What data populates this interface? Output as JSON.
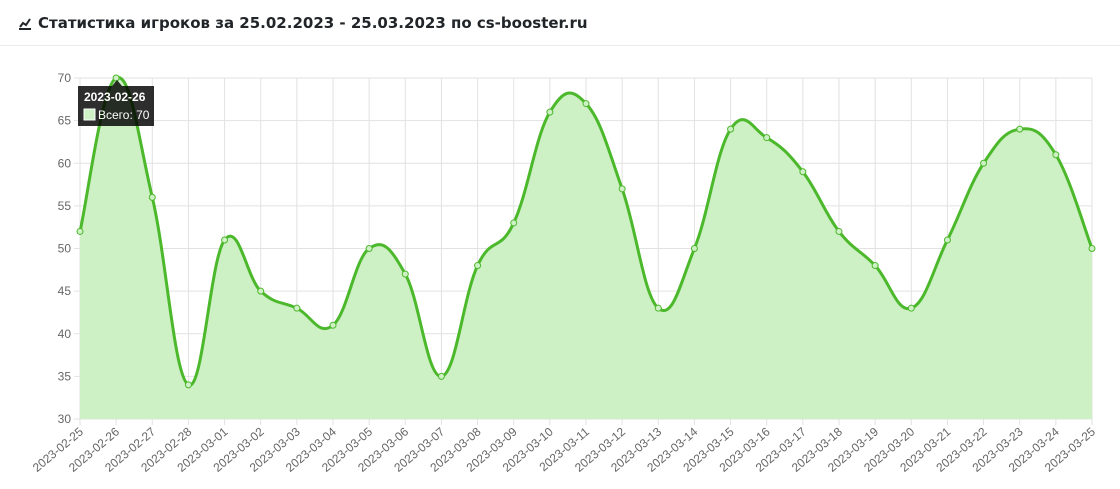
{
  "chart_data": {
    "type": "line",
    "title": "Статистика игроков за 25.02.2023 - 25.03.2023 по cs-booster.ru",
    "categories": [
      "2023-02-25",
      "2023-02-26",
      "2023-02-27",
      "2023-02-28",
      "2023-03-01",
      "2023-03-02",
      "2023-03-03",
      "2023-03-04",
      "2023-03-05",
      "2023-03-06",
      "2023-03-07",
      "2023-03-08",
      "2023-03-09",
      "2023-03-10",
      "2023-03-11",
      "2023-03-12",
      "2023-03-13",
      "2023-03-14",
      "2023-03-15",
      "2023-03-16",
      "2023-03-17",
      "2023-03-18",
      "2023-03-19",
      "2023-03-20",
      "2023-03-21",
      "2023-03-22",
      "2023-03-23",
      "2023-03-24",
      "2023-03-25"
    ],
    "series": [
      {
        "name": "Всего",
        "color": "#4cb82b",
        "fill": "#cdf0c5",
        "values": [
          52,
          70,
          56,
          34,
          51,
          45,
          43,
          41,
          50,
          47,
          35,
          48,
          53,
          66,
          67,
          57,
          43,
          50,
          64,
          63,
          59,
          52,
          48,
          43,
          51,
          60,
          64,
          61,
          50
        ]
      }
    ],
    "ylim": [
      30,
      70
    ],
    "yticks": [
      30,
      35,
      40,
      45,
      50,
      55,
      60,
      65,
      70
    ],
    "grid": true,
    "tooltip": {
      "title": "2023-02-26",
      "label": "Всего: 70"
    }
  }
}
